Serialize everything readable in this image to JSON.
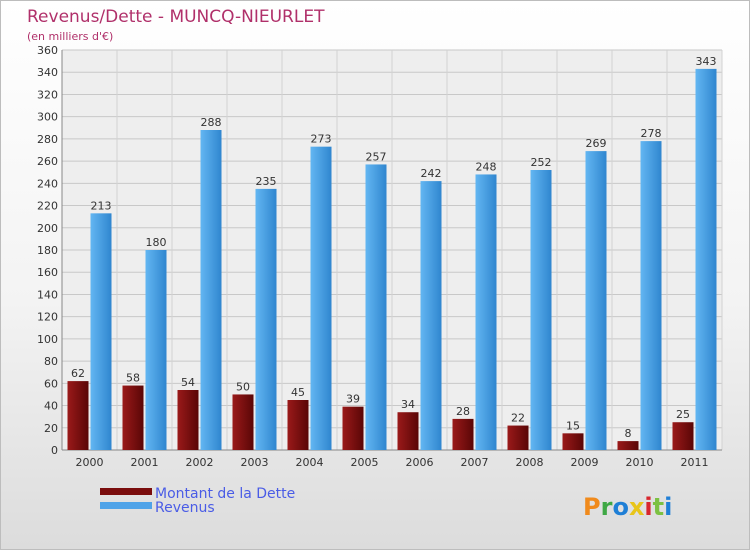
{
  "chart_data": {
    "type": "bar",
    "title": "Revenus/Dette - MUNCQ-NIEURLET",
    "subtitle": "(en milliers d'€)",
    "categories": [
      "2000",
      "2001",
      "2002",
      "2003",
      "2004",
      "2005",
      "2006",
      "2007",
      "2008",
      "2009",
      "2010",
      "2011"
    ],
    "series": [
      {
        "name": "Montant de la Dette",
        "color": "#7a0d0d",
        "values": [
          62,
          58,
          54,
          50,
          45,
          39,
          34,
          28,
          22,
          15,
          8,
          25
        ]
      },
      {
        "name": "Revenus",
        "color": "#4fa3e8",
        "values": [
          213,
          180,
          288,
          235,
          273,
          257,
          242,
          248,
          252,
          269,
          278,
          343
        ]
      }
    ],
    "ylim": [
      0,
      360
    ],
    "ytick_step": 20,
    "grid": true,
    "legend_position": "bottom-left",
    "xlabel": "",
    "ylabel": ""
  },
  "branding": {
    "logo_text": "Proxiti",
    "logo_colors": [
      "#f08a1c",
      "#3fa845",
      "#1f7fd6",
      "#e8c51a",
      "#d8262d",
      "#7cc142",
      "#1f7fd6"
    ]
  }
}
